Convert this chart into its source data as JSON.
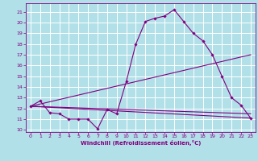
{
  "xlabel": "Windchill (Refroidissement éolien,°C)",
  "background_color": "#b2e0e8",
  "grid_color": "#ffffff",
  "line_color": "#800080",
  "xlim": [
    -0.5,
    23.5
  ],
  "ylim": [
    9.8,
    21.8
  ],
  "xticks": [
    0,
    1,
    2,
    3,
    4,
    5,
    6,
    7,
    8,
    9,
    10,
    11,
    12,
    13,
    14,
    15,
    16,
    17,
    18,
    19,
    20,
    21,
    22,
    23
  ],
  "yticks": [
    10,
    11,
    12,
    13,
    14,
    15,
    16,
    17,
    18,
    19,
    20,
    21
  ],
  "line1_x": [
    0,
    1,
    2,
    3,
    4,
    5,
    6,
    7,
    8,
    9,
    10,
    11,
    12,
    13,
    14,
    15,
    16,
    17,
    18,
    19,
    20,
    21,
    22,
    23
  ],
  "line1_y": [
    12.2,
    12.7,
    11.6,
    11.5,
    11.0,
    11.0,
    11.0,
    10.1,
    11.9,
    11.5,
    14.5,
    18.0,
    20.1,
    20.4,
    20.6,
    21.2,
    20.1,
    19.0,
    18.3,
    17.0,
    15.0,
    13.0,
    12.3,
    11.1
  ],
  "line2_x": [
    0,
    23
  ],
  "line2_y": [
    12.2,
    11.1
  ],
  "line3_x": [
    0,
    23
  ],
  "line3_y": [
    12.2,
    17.0
  ],
  "line4_x": [
    0,
    23
  ],
  "line4_y": [
    12.2,
    11.5
  ]
}
